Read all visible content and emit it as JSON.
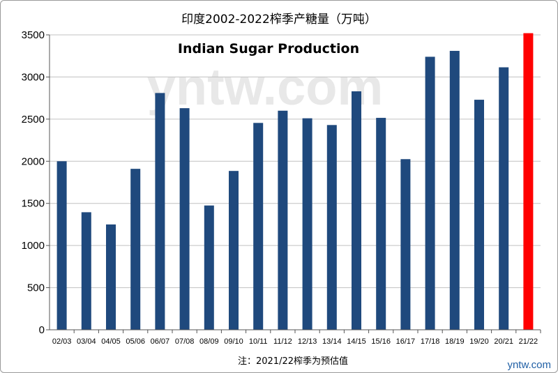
{
  "chart_data": {
    "type": "bar",
    "title": "印度2002-2022榨季产糖量（万吨）",
    "subtitle": "Indian Sugar Production",
    "categories": [
      "02/03",
      "03/04",
      "04/05",
      "05/06",
      "06/07",
      "07/08",
      "08/09",
      "09/10",
      "10/11",
      "11/12",
      "12/13",
      "13/14",
      "14/15",
      "15/16",
      "16/17",
      "17/18",
      "18/19",
      "19/20",
      "20/21",
      "21/22"
    ],
    "values": [
      2000,
      1395,
      1250,
      1910,
      2810,
      2630,
      1475,
      1885,
      2455,
      2600,
      2510,
      2430,
      2830,
      2515,
      2025,
      3240,
      3310,
      2730,
      3115,
      3520
    ],
    "ylim": [
      0,
      3500
    ],
    "yticks": [
      0,
      500,
      1000,
      1500,
      2000,
      2500,
      3000,
      3500
    ],
    "grid": true,
    "xlabel": "",
    "ylabel": "",
    "colors": {
      "bar": "#1f497d",
      "highlight": "#ff0000",
      "grid": "#c0c0c0"
    },
    "highlight_index": 19,
    "note": "注：2021/22榨季为预估值"
  },
  "watermark": "yntw.com",
  "credit": "yntw.com"
}
